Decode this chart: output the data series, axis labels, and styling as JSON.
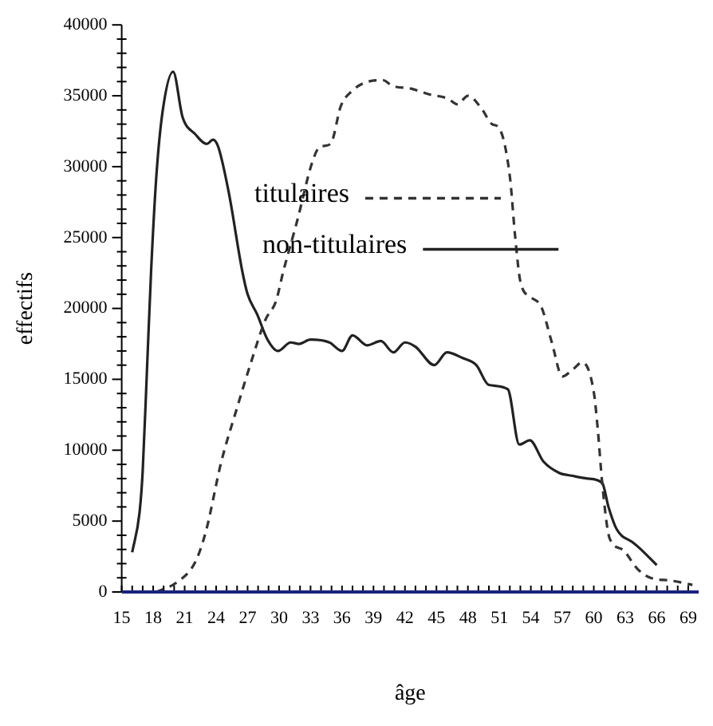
{
  "chart_data": {
    "type": "line",
    "xlabel": "âge",
    "ylabel": "effectifs",
    "xlim": [
      15,
      70
    ],
    "xticks": [
      15,
      {
        "value": 16,
        "label": null
      },
      {
        "value": 17,
        "label": null
      },
      18,
      {
        "value": 19,
        "label": null
      },
      {
        "value": 20,
        "label": null
      },
      21,
      {
        "value": 22,
        "label": null
      },
      {
        "value": 23,
        "label": null
      },
      24,
      {
        "value": 25,
        "label": null
      },
      {
        "value": 26,
        "label": null
      },
      27,
      {
        "value": 28,
        "label": null
      },
      {
        "value": 29,
        "label": null
      },
      30,
      {
        "value": 31,
        "label": null
      },
      {
        "value": 32,
        "label": null
      },
      33,
      {
        "value": 34,
        "label": null
      },
      {
        "value": 35,
        "label": null
      },
      36,
      {
        "value": 37,
        "label": null
      },
      {
        "value": 38,
        "label": null
      },
      39,
      {
        "value": 40,
        "label": null
      },
      {
        "value": 41,
        "label": null
      },
      42,
      {
        "value": 43,
        "label": null
      },
      {
        "value": 44,
        "label": null
      },
      45,
      {
        "value": 46,
        "label": null
      },
      {
        "value": 47,
        "label": null
      },
      48,
      {
        "value": 49,
        "label": null
      },
      {
        "value": 50,
        "label": null
      },
      51,
      {
        "value": 52,
        "label": null
      },
      {
        "value": 53,
        "label": null
      },
      54,
      {
        "value": 55,
        "label": null
      },
      {
        "value": 56,
        "label": null
      },
      57,
      {
        "value": 58,
        "label": null
      },
      {
        "value": 59,
        "label": null
      },
      60,
      {
        "value": 61,
        "label": null
      },
      {
        "value": 62,
        "label": null
      },
      63,
      {
        "value": 64,
        "label": null
      },
      {
        "value": 65,
        "label": null
      },
      66,
      {
        "value": 67,
        "label": null
      },
      {
        "value": 68,
        "label": null
      },
      69
    ],
    "ylim": [
      0,
      40000
    ],
    "yticks": [
      0,
      {
        "value": 1000,
        "label": null
      },
      {
        "value": 2000,
        "label": null
      },
      {
        "value": 3000,
        "label": null
      },
      {
        "value": 4000,
        "label": null
      },
      5000,
      {
        "value": 6000,
        "label": null
      },
      {
        "value": 7000,
        "label": null
      },
      {
        "value": 8000,
        "label": null
      },
      {
        "value": 9000,
        "label": null
      },
      10000,
      {
        "value": 11000,
        "label": null
      },
      {
        "value": 12000,
        "label": null
      },
      {
        "value": 13000,
        "label": null
      },
      {
        "value": 14000,
        "label": null
      },
      15000,
      {
        "value": 16000,
        "label": null
      },
      {
        "value": 17000,
        "label": null
      },
      {
        "value": 18000,
        "label": null
      },
      {
        "value": 19000,
        "label": null
      },
      20000,
      {
        "value": 21000,
        "label": null
      },
      {
        "value": 22000,
        "label": null
      },
      {
        "value": 23000,
        "label": null
      },
      {
        "value": 24000,
        "label": null
      },
      25000,
      {
        "value": 26000,
        "label": null
      },
      {
        "value": 27000,
        "label": null
      },
      {
        "value": 28000,
        "label": null
      },
      {
        "value": 29000,
        "label": null
      },
      30000,
      {
        "value": 31000,
        "label": null
      },
      {
        "value": 32000,
        "label": null
      },
      {
        "value": 33000,
        "label": null
      },
      {
        "value": 34000,
        "label": null
      },
      35000,
      {
        "value": 36000,
        "label": null
      },
      {
        "value": 37000,
        "label": null
      },
      {
        "value": 38000,
        "label": null
      },
      {
        "value": 39000,
        "label": null
      },
      40000
    ],
    "grid": false,
    "legend": "center",
    "marker": "none",
    "series": [
      {
        "name": "titulaires",
        "color": "#333333",
        "line_style": "dashed",
        "x": [
          18.3,
          20.3,
          22,
          23,
          24.5,
          26,
          27.2,
          28.7,
          29.7,
          30.4,
          31.7,
          33.2,
          33.9,
          34.9,
          35.9,
          36.9,
          38.1,
          39.9,
          40.8,
          42.6,
          44.3,
          46.1,
          47,
          48,
          49.3,
          50.3,
          51,
          52,
          52.5,
          53,
          54,
          55,
          56,
          57,
          58,
          58.9,
          60,
          60.4,
          60.8,
          61.5,
          62.7,
          64.2,
          65.4,
          67.4,
          69.4
        ],
        "values": [
          0,
          700,
          2100,
          4200,
          9200,
          13000,
          15900,
          19200,
          20500,
          22600,
          26100,
          30400,
          31400,
          31600,
          34300,
          35300,
          35900,
          36100,
          35700,
          35500,
          35100,
          34800,
          34400,
          35000,
          34100,
          33000,
          32700,
          29300,
          25100,
          21900,
          20800,
          20100,
          17600,
          15200,
          15700,
          16200,
          14100,
          11300,
          7700,
          3800,
          3000,
          1600,
          1000,
          800,
          500
        ]
      },
      {
        "name": "non-titulaires",
        "color": "#222222",
        "line_style": "solid",
        "x": [
          16,
          16.7,
          17,
          17.4,
          17.8,
          18.3,
          18.9,
          19.9,
          20.8,
          22,
          23.1,
          23.7,
          24.2,
          25.2,
          26.5,
          27,
          27.9,
          28.9,
          29.9,
          31.1,
          31.9,
          33,
          34.8,
          36,
          37,
          38.4,
          39.7,
          40.9,
          42,
          43,
          44.8,
          46,
          47.5,
          48.8,
          50,
          51.8,
          52.9,
          53.9,
          55.2,
          56.7,
          57.9,
          59.4,
          60.8,
          61.4,
          62.2,
          63.7,
          64.2,
          66
        ],
        "values": [
          2800,
          5600,
          8500,
          15500,
          22600,
          29300,
          33900,
          36700,
          33500,
          32300,
          31600,
          31900,
          31400,
          28200,
          22600,
          21000,
          19600,
          17800,
          17000,
          17600,
          17500,
          17800,
          17600,
          17000,
          18100,
          17400,
          17700,
          16900,
          17600,
          17300,
          16000,
          16900,
          16500,
          16000,
          14600,
          14300,
          10400,
          10700,
          9200,
          8400,
          8200,
          8000,
          7700,
          6000,
          4400,
          3500,
          3200,
          1900
        ]
      }
    ]
  }
}
